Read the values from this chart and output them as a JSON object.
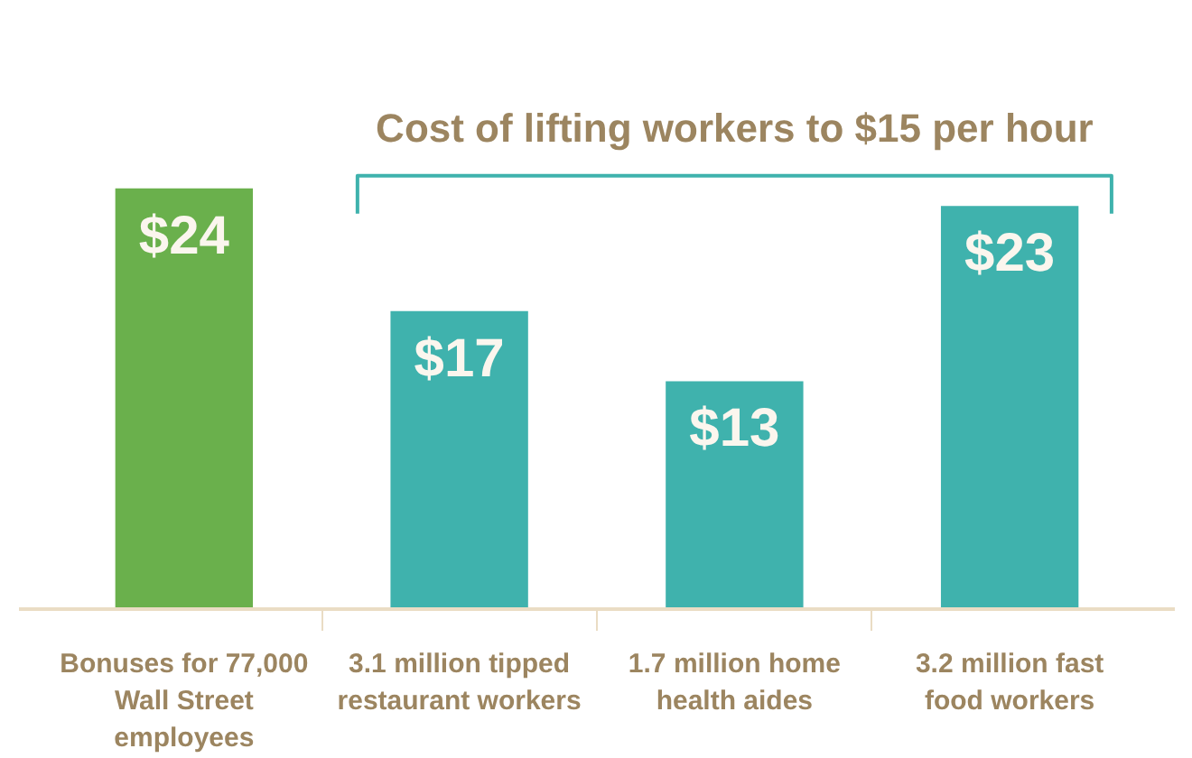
{
  "chart_data": {
    "type": "bar",
    "title": "Cost of lifting workers to $15 per hour",
    "categories": [
      "Bonuses for 77,000 Wall Street employees",
      "3.1 million tipped restaurant workers",
      "1.7 million home health aides",
      "3.2 million fast food workers"
    ],
    "values": [
      24,
      17,
      13,
      23
    ],
    "colors": [
      "#6ab04c",
      "#3fb2ad",
      "#3fb2ad",
      "#3fb2ad"
    ],
    "value_labels": [
      "$24",
      "$17",
      "$13",
      "$23"
    ],
    "tick_labels": "x"
  }
}
